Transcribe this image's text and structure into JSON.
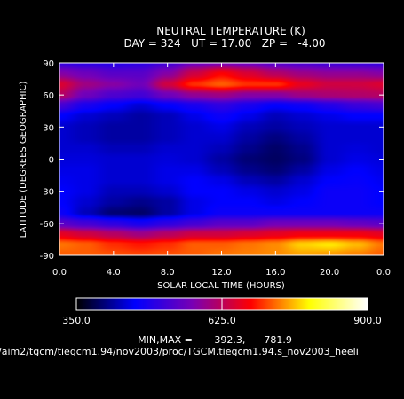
{
  "chart_data": {
    "type": "heatmap",
    "title": "NEUTRAL TEMPERATURE (K)",
    "subtitle": "DAY = 324   UT = 17.00   ZP =   -4.00",
    "xlabel": "SOLAR LOCAL TIME (HOURS)",
    "ylabel": "LATITUDE (DEGREES GEOGRAPHIC)",
    "xlim": [
      0,
      24
    ],
    "ylim": [
      -90,
      90
    ],
    "x_tick_labels": [
      "0.0",
      "4.0",
      "8.0",
      "12.0",
      "16.0",
      "20.0",
      "0.0"
    ],
    "y_tick_labels": [
      "90",
      "60",
      "30",
      "0",
      "-30",
      "-60",
      "-90"
    ],
    "colorbar": {
      "min": 350.0,
      "max": 900.0,
      "labels": [
        "350.0",
        "625.0",
        "900.0"
      ],
      "colors": [
        "#000000",
        "#0000ff",
        "#7a00b4",
        "#ff0000",
        "#ffff00",
        "#ffffff"
      ]
    },
    "minmax_text": "MIN,MAX =       392.3,      781.9",
    "path_text": "/aim2/tgcm/tiegcm1.94/nov2003/proc/TGCM.tiegcm1.94.s_nov2003_heeli",
    "field": {
      "description_units": "K",
      "lat": [
        90,
        80,
        70,
        60,
        50,
        40,
        30,
        20,
        10,
        0,
        -10,
        -20,
        -30,
        -40,
        -50,
        -60,
        -70,
        -80,
        -90
      ],
      "lt": [
        0,
        2,
        4,
        6,
        8,
        10,
        12,
        14,
        16,
        18,
        20,
        22,
        24
      ],
      "values": [
        [
          510,
          500,
          495,
          500,
          520,
          560,
          570,
          560,
          540,
          530,
          520,
          515,
          510
        ],
        [
          580,
          560,
          540,
          540,
          580,
          640,
          680,
          650,
          620,
          600,
          590,
          590,
          580
        ],
        [
          650,
          600,
          580,
          560,
          640,
          700,
          720,
          700,
          700,
          660,
          640,
          640,
          650
        ],
        [
          620,
          560,
          530,
          520,
          560,
          590,
          600,
          580,
          580,
          600,
          610,
          615,
          620
        ],
        [
          520,
          480,
          460,
          440,
          460,
          480,
          500,
          480,
          460,
          470,
          490,
          510,
          520
        ],
        [
          460,
          440,
          430,
          420,
          430,
          450,
          470,
          450,
          430,
          440,
          450,
          460,
          460
        ],
        [
          440,
          430,
          420,
          420,
          430,
          440,
          450,
          430,
          420,
          430,
          440,
          440,
          440
        ],
        [
          440,
          430,
          420,
          420,
          430,
          440,
          440,
          420,
          405,
          420,
          440,
          440,
          440
        ],
        [
          440,
          440,
          430,
          430,
          440,
          440,
          430,
          410,
          395,
          410,
          440,
          445,
          440
        ],
        [
          445,
          445,
          440,
          440,
          445,
          440,
          420,
          400,
          392,
          405,
          440,
          450,
          445
        ],
        [
          450,
          450,
          440,
          440,
          450,
          450,
          430,
          410,
          400,
          420,
          450,
          460,
          450
        ],
        [
          455,
          450,
          440,
          440,
          450,
          460,
          450,
          430,
          420,
          440,
          460,
          465,
          455
        ],
        [
          460,
          450,
          430,
          430,
          440,
          460,
          460,
          450,
          440,
          450,
          470,
          470,
          460
        ],
        [
          460,
          440,
          420,
          410,
          420,
          450,
          460,
          460,
          450,
          460,
          470,
          470,
          460
        ],
        [
          470,
          430,
          400,
          395,
          420,
          450,
          470,
          470,
          470,
          470,
          470,
          470,
          470
        ],
        [
          540,
          520,
          500,
          480,
          500,
          520,
          540,
          540,
          560,
          560,
          560,
          550,
          540
        ],
        [
          660,
          640,
          620,
          600,
          620,
          640,
          640,
          650,
          660,
          670,
          670,
          670,
          660
        ],
        [
          730,
          720,
          700,
          690,
          700,
          720,
          720,
          730,
          740,
          770,
          780,
          760,
          730
        ],
        [
          720,
          720,
          715,
          710,
          715,
          720,
          730,
          735,
          740,
          750,
          745,
          735,
          720
        ]
      ]
    }
  }
}
